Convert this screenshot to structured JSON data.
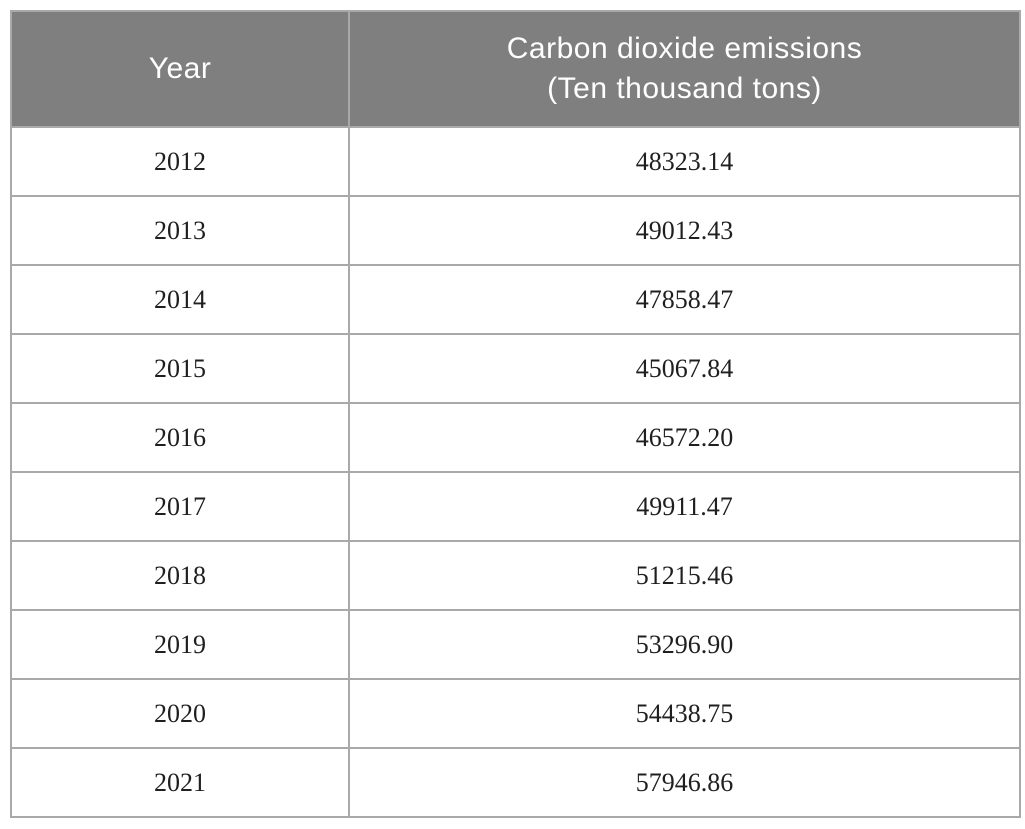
{
  "table": {
    "header": {
      "year_label": "Year",
      "emissions_label_line1": "Carbon dioxide emissions",
      "emissions_label_line2": "(Ten thousand tons)"
    },
    "rows": [
      {
        "year": "2012",
        "value": "48323.14"
      },
      {
        "year": "2013",
        "value": "49012.43"
      },
      {
        "year": "2014",
        "value": "47858.47"
      },
      {
        "year": "2015",
        "value": "45067.84"
      },
      {
        "year": "2016",
        "value": "46572.20"
      },
      {
        "year": "2017",
        "value": "49911.47"
      },
      {
        "year": "2018",
        "value": "51215.46"
      },
      {
        "year": "2019",
        "value": "53296.90"
      },
      {
        "year": "2020",
        "value": "54438.75"
      },
      {
        "year": "2021",
        "value": "57946.86"
      }
    ]
  },
  "colors": {
    "header_background": "#7f7f7f",
    "header_text": "#ffffff",
    "border": "#a9a9a9",
    "body_text": "#1f1f1f",
    "page_background": "#ffffff"
  },
  "chart_data": {
    "type": "table",
    "title": "",
    "columns": [
      "Year",
      "Carbon dioxide emissions (Ten thousand tons)"
    ],
    "rows": [
      [
        2012,
        48323.14
      ],
      [
        2013,
        49012.43
      ],
      [
        2014,
        47858.47
      ],
      [
        2015,
        45067.84
      ],
      [
        2016,
        46572.2
      ],
      [
        2017,
        49911.47
      ],
      [
        2018,
        51215.46
      ],
      [
        2019,
        53296.9
      ],
      [
        2020,
        54438.75
      ],
      [
        2021,
        57946.86
      ]
    ]
  }
}
